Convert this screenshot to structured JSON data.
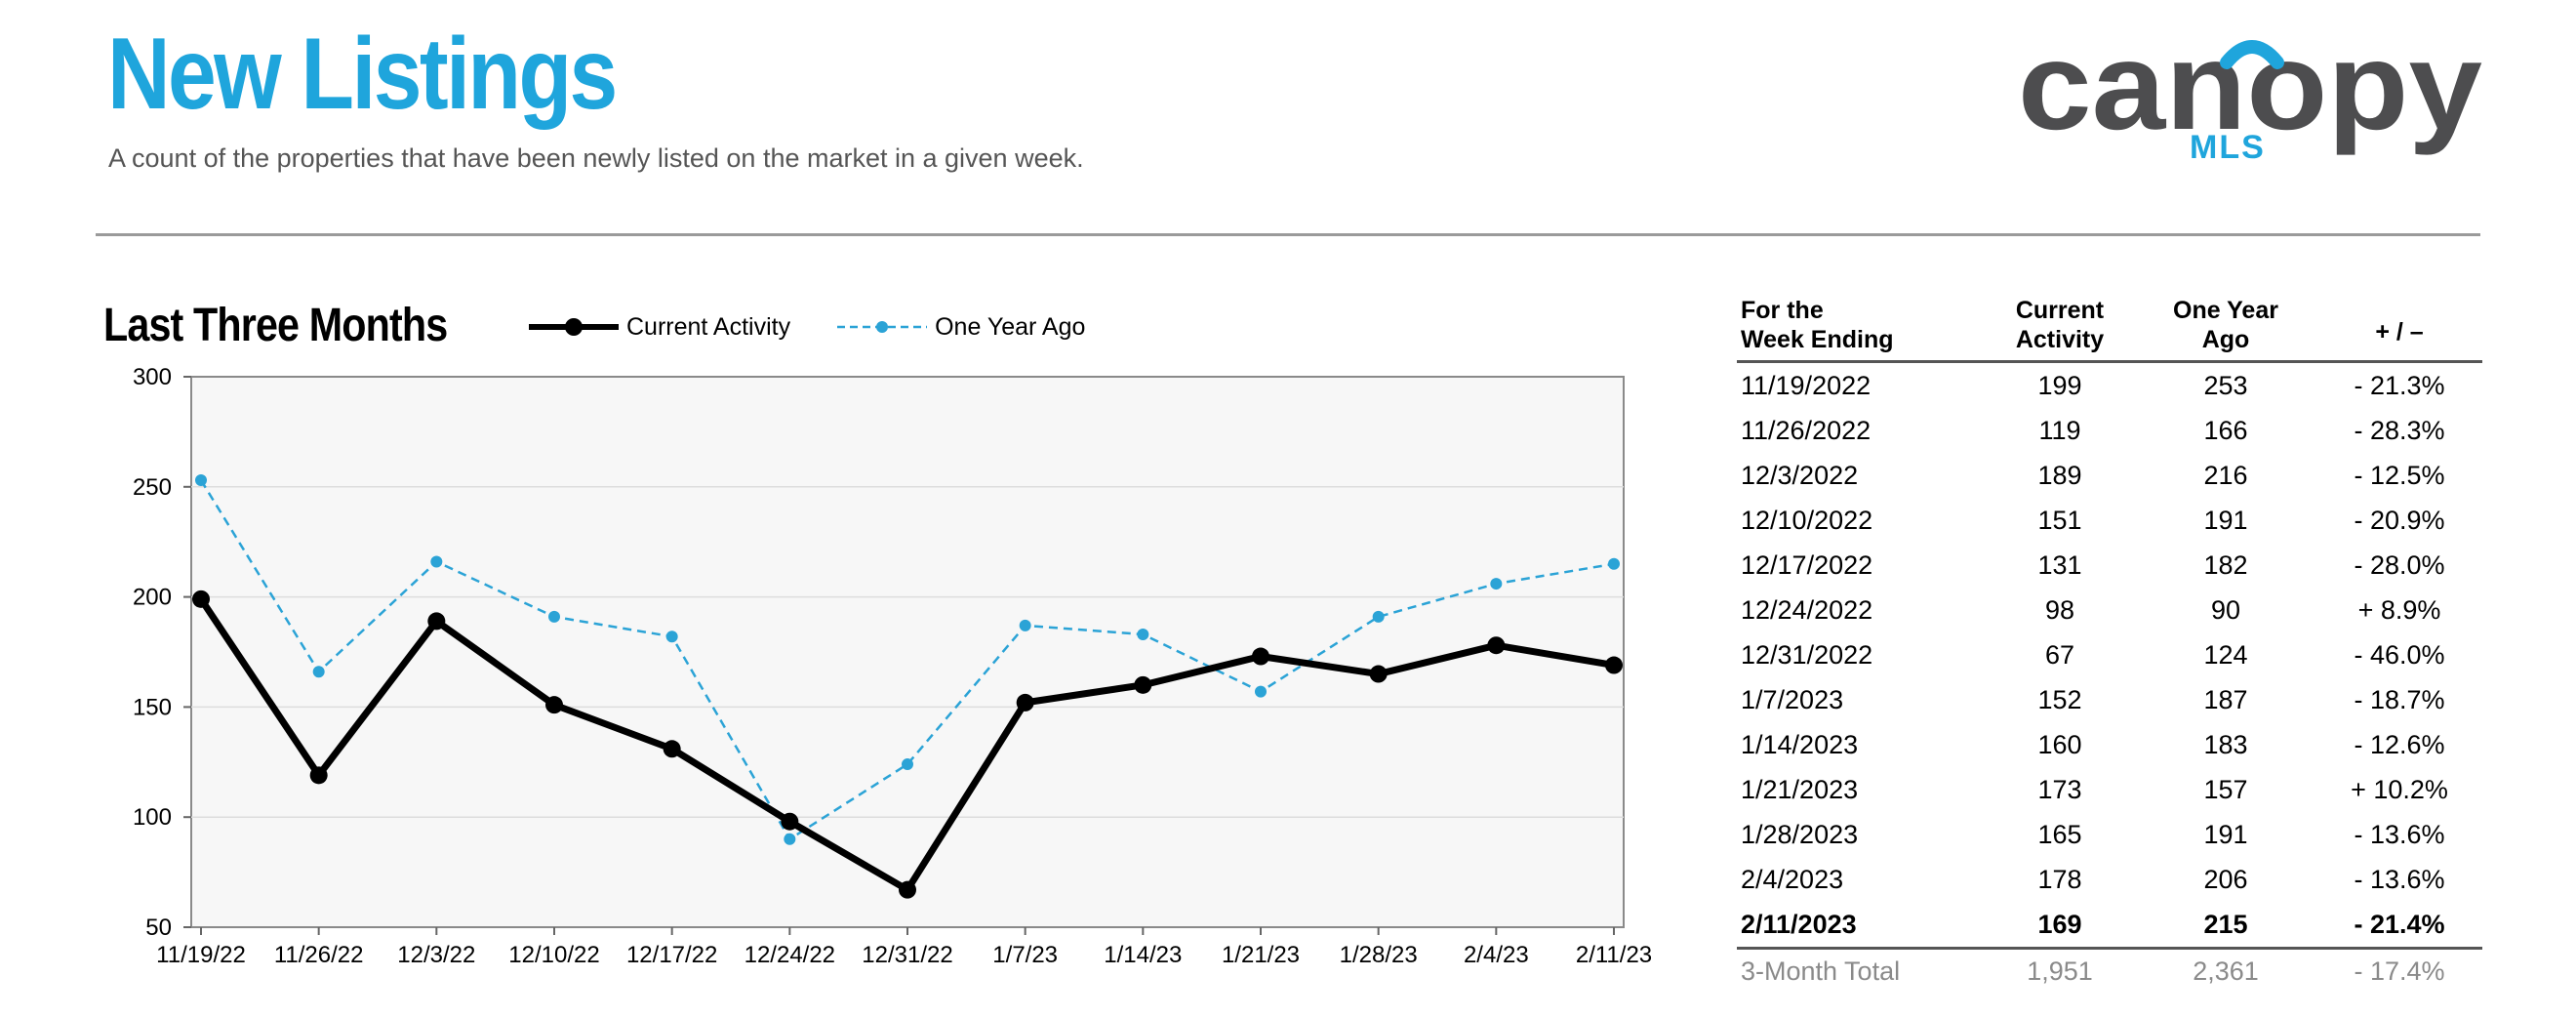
{
  "header": {
    "title": "New Listings",
    "subtitle": "A count of the properties that have been newly listed on the market in a given week.",
    "logo_text": "canopy",
    "logo_sub": "MLS"
  },
  "colors": {
    "title": "#1fa5dc",
    "current_series": "#000000",
    "year_ago_series": "#2ba3d6",
    "plot_bg": "#f7f7f7",
    "logo_gray": "#4d4d4f",
    "logo_blue": "#1fa5dc"
  },
  "section_title": "Last Three Months",
  "legend": {
    "current": "Current Activity",
    "year_ago": "One Year Ago"
  },
  "chart_data": {
    "type": "line",
    "categories": [
      "11/19/22",
      "11/26/22",
      "12/3/22",
      "12/10/22",
      "12/17/22",
      "12/24/22",
      "12/31/22",
      "1/7/23",
      "1/14/23",
      "1/21/23",
      "1/28/23",
      "2/4/23",
      "2/11/23"
    ],
    "series": [
      {
        "name": "Current Activity",
        "values": [
          199,
          119,
          189,
          151,
          131,
          98,
          67,
          152,
          160,
          173,
          165,
          178,
          169
        ]
      },
      {
        "name": "One Year Ago",
        "values": [
          253,
          166,
          216,
          191,
          182,
          90,
          124,
          187,
          183,
          157,
          191,
          206,
          215
        ]
      }
    ],
    "ylim": [
      50,
      300
    ],
    "yticks": [
      50,
      100,
      150,
      200,
      250,
      300
    ],
    "grid": true,
    "legend_position": "top"
  },
  "table": {
    "headers": {
      "week_line1": "For the",
      "week_line2": "Week Ending",
      "current_line1": "Current",
      "current_line2": "Activity",
      "year_ago_line1": "One Year",
      "year_ago_line2": "Ago",
      "change": "+ / –"
    },
    "rows": [
      {
        "week": "11/19/2022",
        "current": "199",
        "year_ago": "253",
        "change": "- 21.3%"
      },
      {
        "week": "11/26/2022",
        "current": "119",
        "year_ago": "166",
        "change": "- 28.3%"
      },
      {
        "week": "12/3/2022",
        "current": "189",
        "year_ago": "216",
        "change": "- 12.5%"
      },
      {
        "week": "12/10/2022",
        "current": "151",
        "year_ago": "191",
        "change": "- 20.9%"
      },
      {
        "week": "12/17/2022",
        "current": "131",
        "year_ago": "182",
        "change": "- 28.0%"
      },
      {
        "week": "12/24/2022",
        "current": "98",
        "year_ago": "90",
        "change": "+ 8.9%"
      },
      {
        "week": "12/31/2022",
        "current": "67",
        "year_ago": "124",
        "change": "- 46.0%"
      },
      {
        "week": "1/7/2023",
        "current": "152",
        "year_ago": "187",
        "change": "- 18.7%"
      },
      {
        "week": "1/14/2023",
        "current": "160",
        "year_ago": "183",
        "change": "- 12.6%"
      },
      {
        "week": "1/21/2023",
        "current": "173",
        "year_ago": "157",
        "change": "+ 10.2%"
      },
      {
        "week": "1/28/2023",
        "current": "165",
        "year_ago": "191",
        "change": "- 13.6%"
      },
      {
        "week": "2/4/2023",
        "current": "178",
        "year_ago": "206",
        "change": "- 13.6%"
      },
      {
        "week": "2/11/2023",
        "current": "169",
        "year_ago": "215",
        "change": "- 21.4%"
      }
    ],
    "total": {
      "week": "3-Month Total",
      "current": "1,951",
      "year_ago": "2,361",
      "change": "- 17.4%"
    }
  }
}
